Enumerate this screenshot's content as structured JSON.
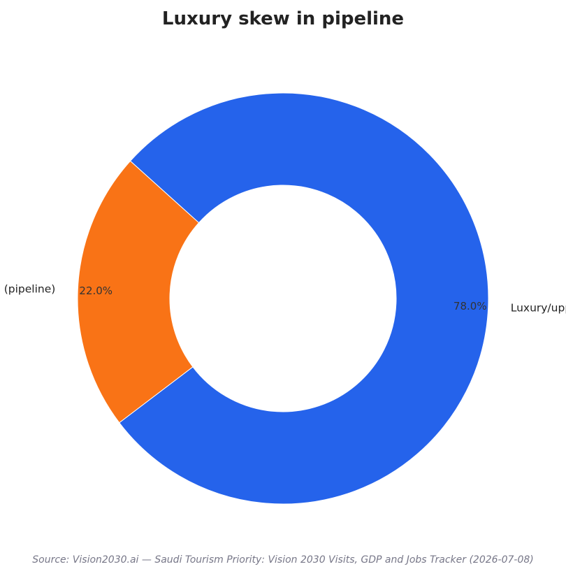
{
  "chart_data": {
    "type": "pie",
    "donut": true,
    "title": "Luxury skew in pipeline",
    "start_angle_deg": 138,
    "direction": "counterclockwise",
    "slices": [
      {
        "label": "Other segments (pipeline)",
        "value": 22.0,
        "pct_label": "22.0%",
        "color": "#F97316"
      },
      {
        "label": "Luxury/upper-upscale/u...",
        "value": 78.0,
        "pct_label": "78.0%",
        "color": "#2563EB"
      }
    ],
    "source": "Source: Vision2030.ai — Saudi Tourism Priority: Vision 2030 Visits, GDP and Jobs Tracker (2026-07-08)"
  }
}
